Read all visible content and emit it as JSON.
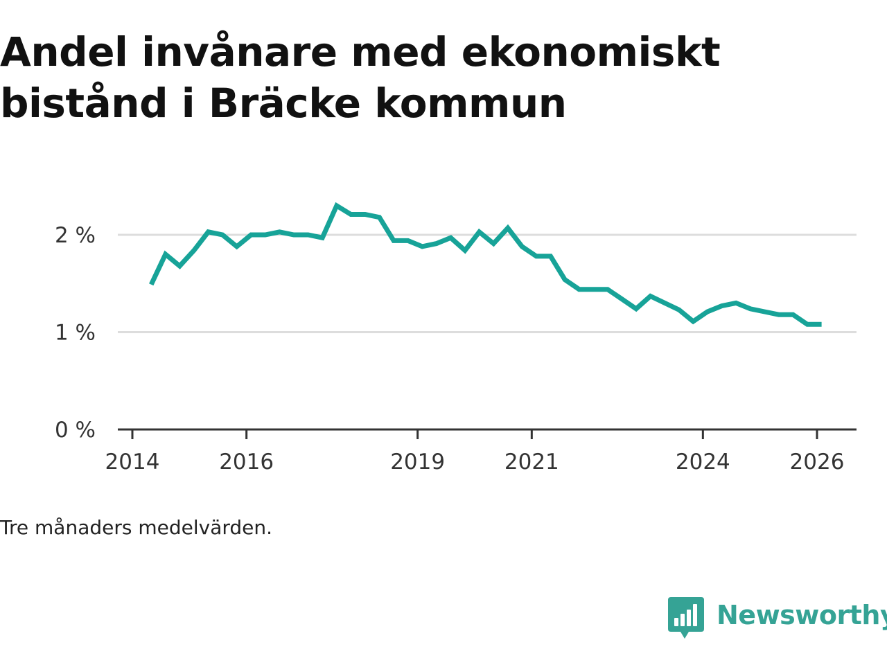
{
  "title": "Andel invånare med ekonomiskt bistånd i Bräcke kommun",
  "caption": "Tre månaders medelvärden.",
  "brand": {
    "name": "Newsworthy",
    "icon": "newsworthy-logo-icon"
  },
  "colors": {
    "line": "#17a398",
    "brand": "#35a395",
    "grid": "#dddddd",
    "axis": "#333333"
  },
  "chart_data": {
    "type": "line",
    "title": "Andel invånare med ekonomiskt bistånd i Bräcke kommun",
    "xlabel": "",
    "ylabel": "",
    "xlim": [
      2014,
      2026.5
    ],
    "ylim": [
      0,
      2.5
    ],
    "y_ticks": [
      0,
      1,
      2
    ],
    "y_tick_labels": [
      "0 %",
      "1 %",
      "2 %"
    ],
    "x_ticks": [
      2014,
      2016,
      2019,
      2021,
      2024,
      2026
    ],
    "x_tick_labels": [
      "2014",
      "2016",
      "2019",
      "2021",
      "2024",
      "2026"
    ],
    "grid": true,
    "series": [
      {
        "name": "Andel invånare med ekonomiskt bistånd",
        "x": [
          2014.33,
          2014.58,
          2014.83,
          2015.08,
          2015.33,
          2015.58,
          2015.83,
          2016.08,
          2016.33,
          2016.58,
          2016.83,
          2017.08,
          2017.33,
          2017.58,
          2017.83,
          2018.08,
          2018.33,
          2018.58,
          2018.83,
          2019.08,
          2019.33,
          2019.58,
          2019.83,
          2020.08,
          2020.33,
          2020.58,
          2020.83,
          2021.08,
          2021.33,
          2021.58,
          2021.83,
          2022.08,
          2022.33,
          2022.58,
          2022.83,
          2023.08,
          2023.33,
          2023.58,
          2023.83,
          2024.08,
          2024.33,
          2024.58,
          2024.83,
          2025.08,
          2025.33,
          2025.58,
          2025.83,
          2026.08
        ],
        "values": [
          1.49,
          1.8,
          1.68,
          1.84,
          2.03,
          2.0,
          1.88,
          2.0,
          2.0,
          2.03,
          2.0,
          2.0,
          1.97,
          2.3,
          2.21,
          2.21,
          2.18,
          1.94,
          1.94,
          1.88,
          1.91,
          1.97,
          1.84,
          2.03,
          1.91,
          2.07,
          1.88,
          1.78,
          1.78,
          1.54,
          1.44,
          1.44,
          1.44,
          1.34,
          1.24,
          1.37,
          1.3,
          1.23,
          1.11,
          1.21,
          1.27,
          1.3,
          1.24,
          1.21,
          1.18,
          1.18,
          1.08,
          1.08
        ]
      }
    ]
  }
}
